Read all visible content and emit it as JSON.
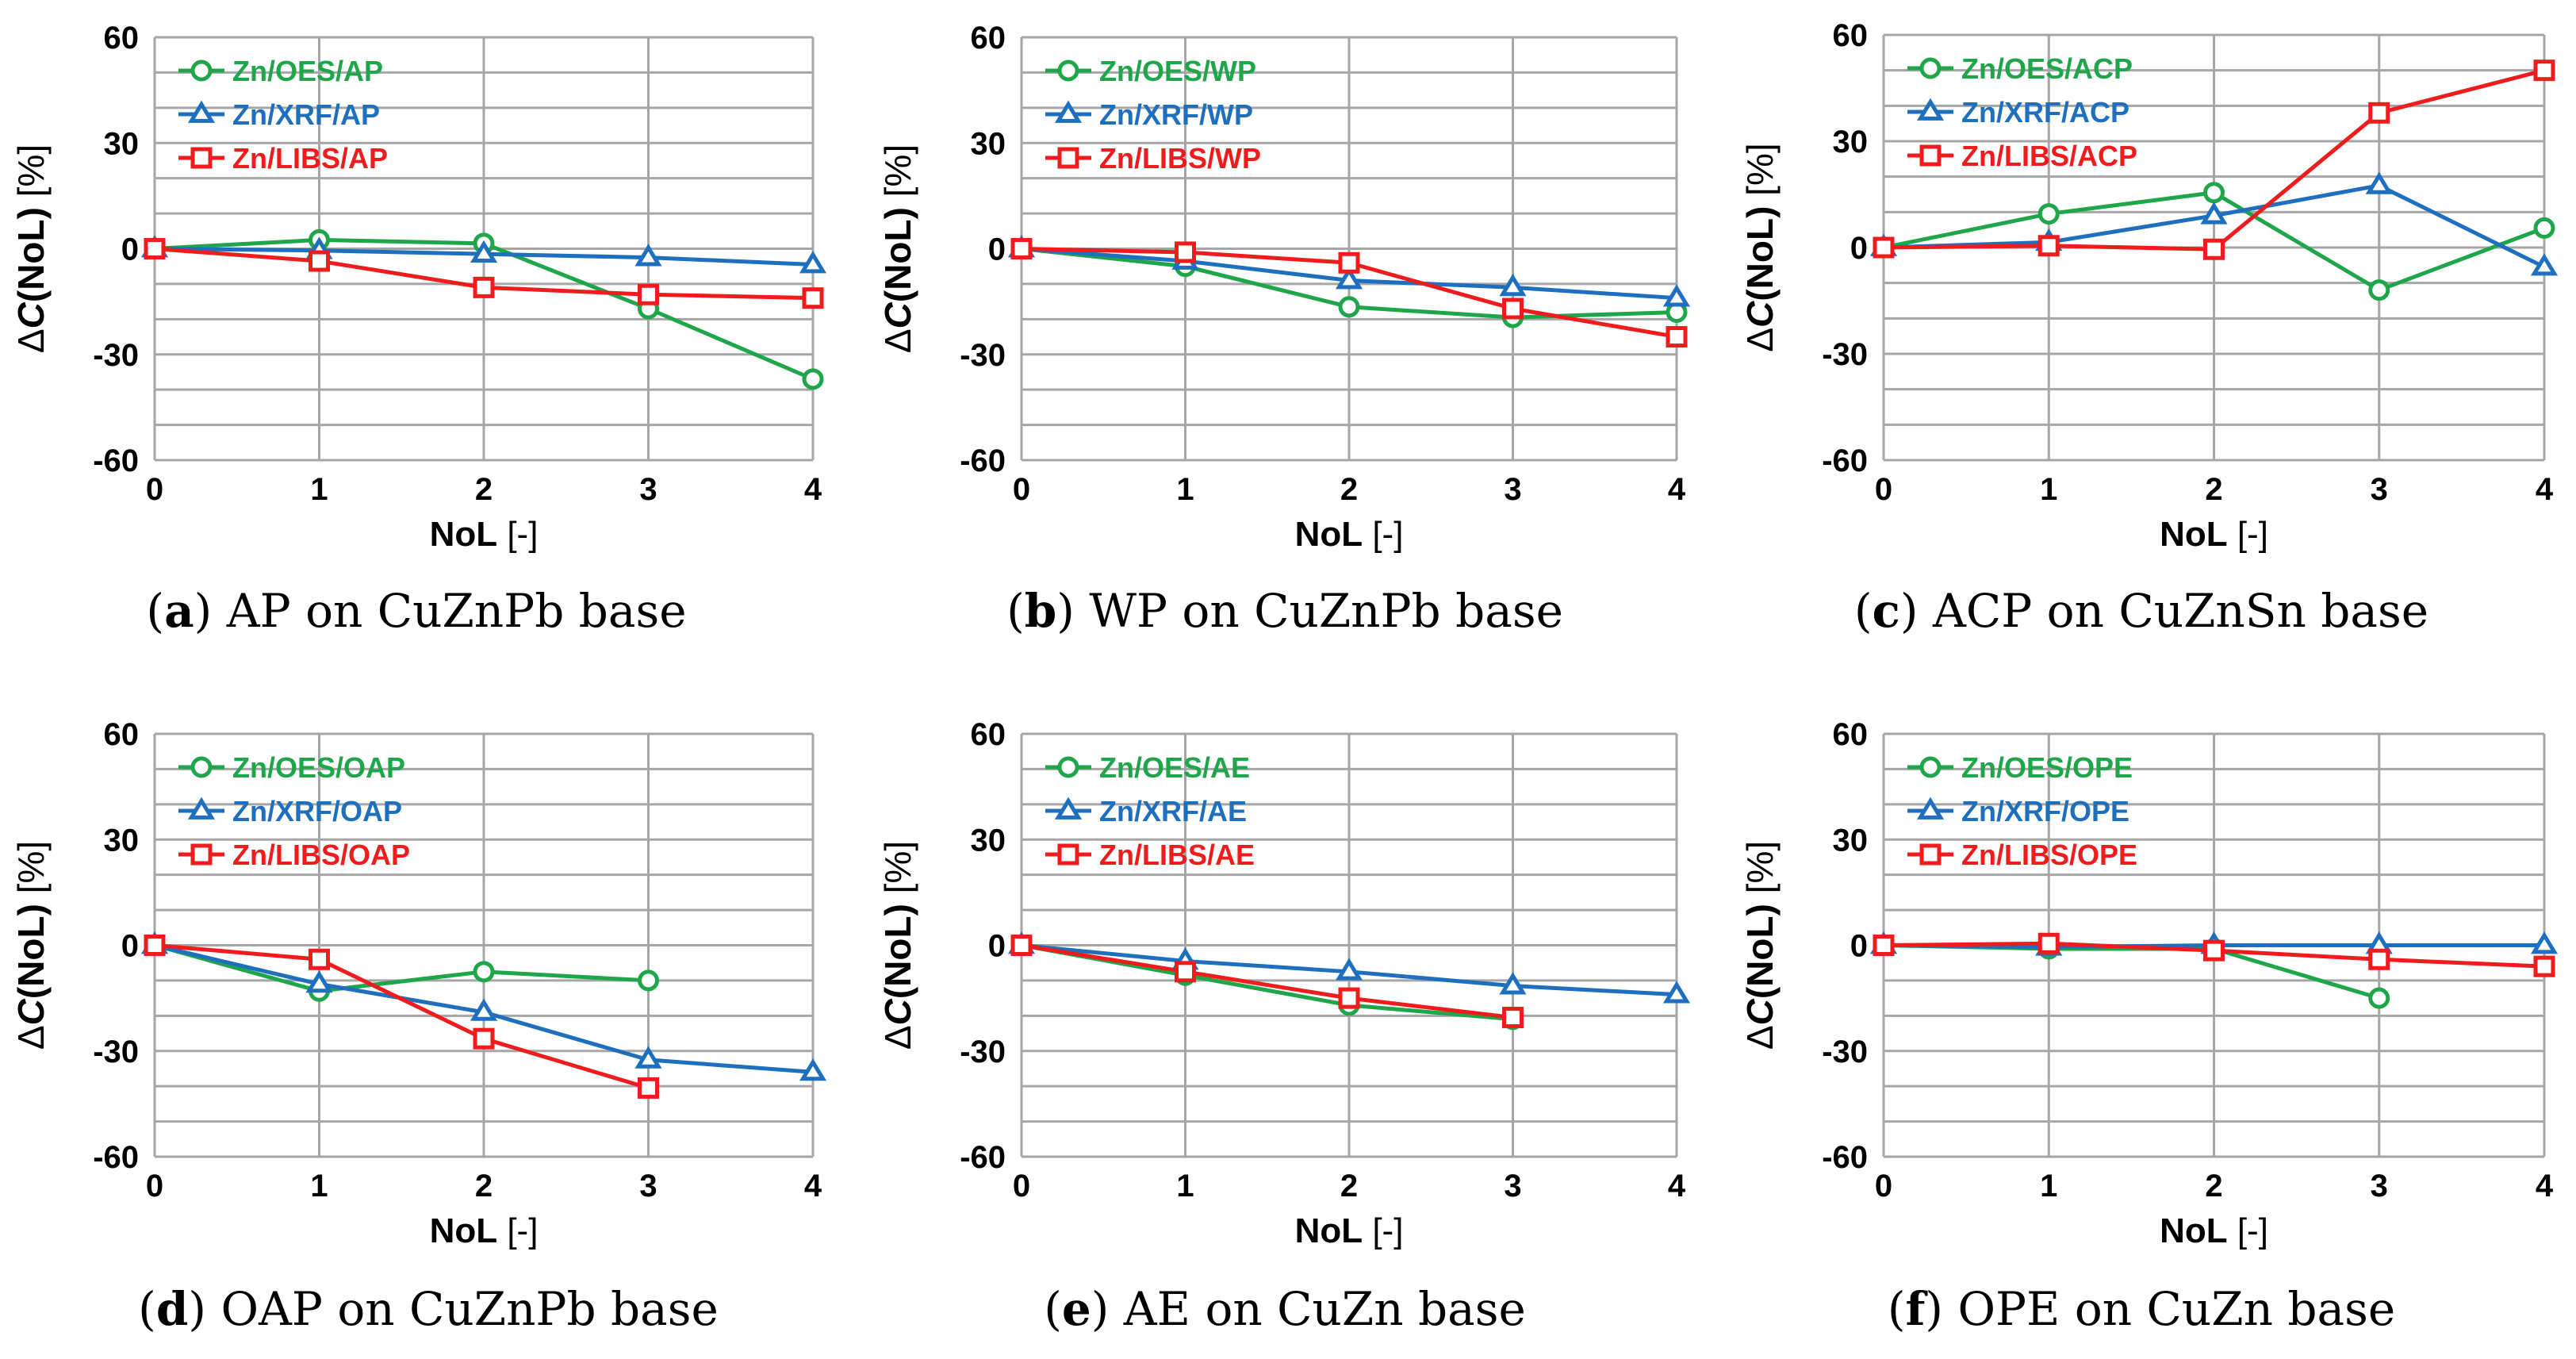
{
  "charts": [
    {
      "caption_letter": "a",
      "caption_text": "AP on CuZnPb base",
      "ylabel_prefix": "Δ",
      "ylabel_italic": "C",
      "ylabel_rest": "(NoL) [%]",
      "xlabel_bold": "NoL",
      "xlabel_rest": " [-]"
    },
    {
      "caption_letter": "b",
      "caption_text": "WP on CuZnPb base",
      "ylabel_prefix": "Δ",
      "ylabel_italic": "C",
      "ylabel_rest": "(NoL) [%]",
      "xlabel_bold": "NoL",
      "xlabel_rest": " [-]"
    },
    {
      "caption_letter": "c",
      "caption_text": "ACP on CuZnSn base",
      "ylabel_prefix": "Δ",
      "ylabel_italic": "C",
      "ylabel_rest": "(NoL) [%]",
      "xlabel_bold": "NoL",
      "xlabel_rest": " [-]"
    },
    {
      "caption_letter": "d",
      "caption_text": "OAP on CuZnPb base",
      "ylabel_prefix": "Δ",
      "ylabel_italic": "C",
      "ylabel_rest": "(NoL) [%]",
      "xlabel_bold": "NoL",
      "xlabel_rest": " [-]"
    },
    {
      "caption_letter": "e",
      "caption_text": "AE on CuZn base",
      "ylabel_prefix": "Δ",
      "ylabel_italic": "C",
      "ylabel_rest": "(NoL) [%]",
      "xlabel_bold": "NoL",
      "xlabel_rest": " [-]"
    },
    {
      "caption_letter": "f",
      "caption_text": "OPE on CuZn base",
      "ylabel_prefix": "Δ",
      "ylabel_italic": "C",
      "ylabel_rest": "(NoL) [%]",
      "xlabel_bold": "NoL",
      "xlabel_rest": " [-]"
    }
  ],
  "colors": {
    "oes": "#1fa54a",
    "xrf": "#1f6fbf",
    "libs": "#ee1c1c",
    "grid": "#a6a6a6",
    "text": "#000000"
  },
  "chart_data": [
    {
      "type": "line",
      "title": "(a) AP on CuZnPb base",
      "xlabel": "NoL [-]",
      "ylabel": "ΔC(NoL) [%]",
      "x": [
        0,
        1,
        2,
        3,
        4
      ],
      "xlim": [
        0,
        4
      ],
      "ylim": [
        -60,
        60
      ],
      "yticks": [
        -60,
        -30,
        0,
        30,
        60
      ],
      "legend_position": "top-left",
      "series": [
        {
          "name": "Zn/OES/AP",
          "marker": "circle",
          "values": [
            0,
            2.5,
            1.5,
            -17,
            -37
          ]
        },
        {
          "name": "Zn/XRF/AP",
          "marker": "triangle",
          "values": [
            0,
            -0.5,
            -1.5,
            -2.5,
            -4.5
          ]
        },
        {
          "name": "Zn/LIBS/AP",
          "marker": "square",
          "values": [
            0,
            -3.5,
            -11,
            -13,
            -14
          ]
        }
      ]
    },
    {
      "type": "line",
      "title": "(b) WP on CuZnPb base",
      "xlabel": "NoL [-]",
      "ylabel": "ΔC(NoL) [%]",
      "x": [
        0,
        1,
        2,
        3,
        4
      ],
      "xlim": [
        0,
        4
      ],
      "ylim": [
        -60,
        60
      ],
      "yticks": [
        -60,
        -30,
        0,
        30,
        60
      ],
      "legend_position": "top-left",
      "series": [
        {
          "name": "Zn/OES/WP",
          "marker": "circle",
          "values": [
            0,
            -5,
            -16.5,
            -19.5,
            -18
          ]
        },
        {
          "name": "Zn/XRF/WP",
          "marker": "triangle",
          "values": [
            0,
            -3.5,
            -9,
            -11,
            -14
          ]
        },
        {
          "name": "Zn/LIBS/WP",
          "marker": "square",
          "values": [
            0,
            -1,
            -4,
            -17,
            -25
          ]
        }
      ]
    },
    {
      "type": "line",
      "title": "(c) ACP on CuZnSn base",
      "xlabel": "NoL [-]",
      "ylabel": "ΔC(NoL) [%]",
      "x": [
        0,
        1,
        2,
        3,
        4
      ],
      "xlim": [
        0,
        4
      ],
      "ylim": [
        -60,
        60
      ],
      "yticks": [
        -60,
        -30,
        0,
        30,
        60
      ],
      "legend_position": "top-left",
      "series": [
        {
          "name": "Zn/OES/ACP",
          "marker": "circle",
          "values": [
            0,
            9.5,
            15.5,
            -12,
            5.5
          ]
        },
        {
          "name": "Zn/XRF/ACP",
          "marker": "triangle",
          "values": [
            0,
            1.5,
            9,
            17.5,
            -5.5
          ]
        },
        {
          "name": "Zn/LIBS/ACP",
          "marker": "square",
          "values": [
            0,
            0.5,
            -0.5,
            38,
            50
          ]
        }
      ]
    },
    {
      "type": "line",
      "title": "(d) OAP on CuZnPb base",
      "xlabel": "NoL [-]",
      "ylabel": "ΔC(NoL) [%]",
      "x": [
        0,
        1,
        2,
        3,
        4
      ],
      "xlim": [
        0,
        4
      ],
      "ylim": [
        -60,
        60
      ],
      "yticks": [
        -60,
        -30,
        0,
        30,
        60
      ],
      "legend_position": "top-left",
      "series": [
        {
          "name": "Zn/OES/OAP",
          "marker": "circle",
          "values": [
            0,
            -13,
            -7.5,
            -10,
            null
          ]
        },
        {
          "name": "Zn/XRF/OAP",
          "marker": "triangle",
          "values": [
            0,
            -11,
            -19,
            -32.5,
            -36
          ]
        },
        {
          "name": "Zn/LIBS/OAP",
          "marker": "square",
          "values": [
            0,
            -4,
            -26.5,
            -40.5,
            null
          ]
        }
      ]
    },
    {
      "type": "line",
      "title": "(e) AE on CuZn base",
      "xlabel": "NoL [-]",
      "ylabel": "ΔC(NoL) [%]",
      "x": [
        0,
        1,
        2,
        3,
        4
      ],
      "xlim": [
        0,
        4
      ],
      "ylim": [
        -60,
        60
      ],
      "yticks": [
        -60,
        -30,
        0,
        30,
        60
      ],
      "legend_position": "top-left",
      "series": [
        {
          "name": "Zn/OES/AE",
          "marker": "circle",
          "values": [
            0,
            -8.5,
            -17,
            -21,
            null
          ]
        },
        {
          "name": "Zn/XRF/AE",
          "marker": "triangle",
          "values": [
            0,
            -4.5,
            -7.5,
            -11.5,
            -14
          ]
        },
        {
          "name": "Zn/LIBS/AE",
          "marker": "square",
          "values": [
            0,
            -7.5,
            -15,
            -20.5,
            null
          ]
        }
      ]
    },
    {
      "type": "line",
      "title": "(f) OPE on CuZn base",
      "xlabel": "NoL [-]",
      "ylabel": "ΔC(NoL) [%]",
      "x": [
        0,
        1,
        2,
        3,
        4
      ],
      "xlim": [
        0,
        4
      ],
      "ylim": [
        -60,
        60
      ],
      "yticks": [
        -60,
        -30,
        0,
        30,
        60
      ],
      "legend_position": "top-left",
      "series": [
        {
          "name": "Zn/OES/OPE",
          "marker": "circle",
          "values": [
            0,
            -1,
            -1,
            -15,
            null
          ]
        },
        {
          "name": "Zn/XRF/OPE",
          "marker": "triangle",
          "values": [
            0,
            -0.5,
            0,
            0,
            0
          ]
        },
        {
          "name": "Zn/LIBS/OPE",
          "marker": "square",
          "values": [
            0,
            0.5,
            -1.5,
            -4,
            -6
          ]
        }
      ]
    }
  ]
}
